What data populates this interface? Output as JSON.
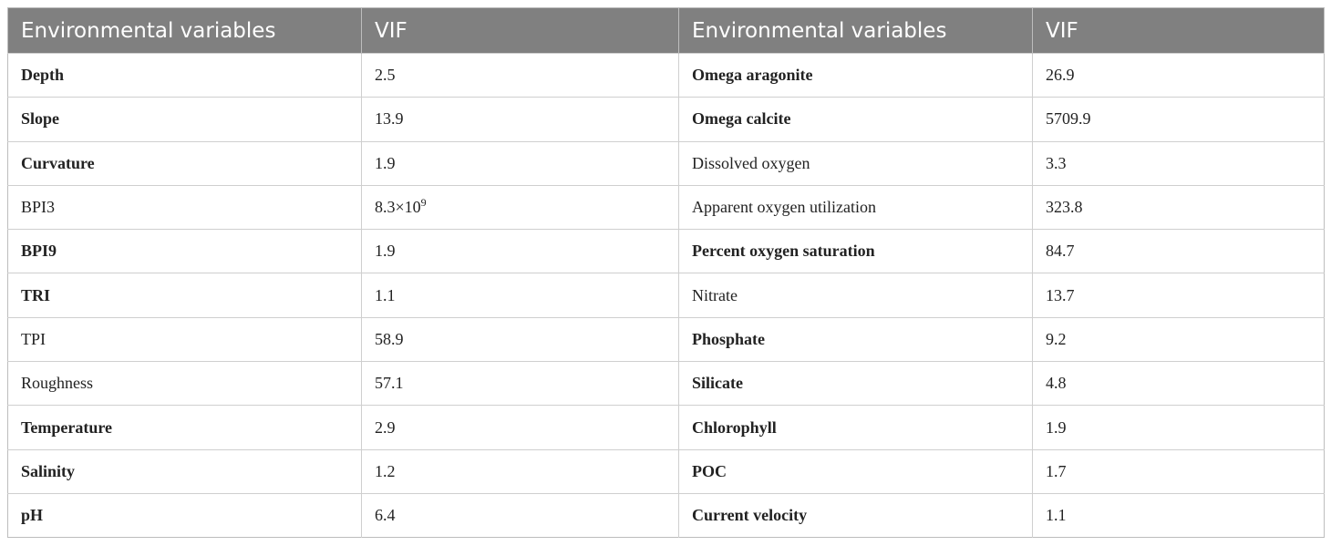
{
  "table": {
    "headers": [
      "Environmental variables",
      "VIF",
      "Environmental variables",
      "VIF"
    ],
    "rows": [
      {
        "left_var": "Depth",
        "left_bold": true,
        "left_vif": "2.5",
        "right_var": "Omega aragonite",
        "right_bold": true,
        "right_vif": "26.9"
      },
      {
        "left_var": "Slope",
        "left_bold": true,
        "left_vif": "13.9",
        "right_var": "Omega calcite",
        "right_bold": true,
        "right_vif": "5709.9"
      },
      {
        "left_var": "Curvature",
        "left_bold": true,
        "left_vif": "1.9",
        "right_var": "Dissolved oxygen",
        "right_bold": false,
        "right_vif": "3.3"
      },
      {
        "left_var": "BPI3",
        "left_bold": false,
        "left_vif": "8.3×10",
        "left_vif_sup": "9",
        "right_var": "Apparent oxygen utilization",
        "right_bold": false,
        "right_vif": "323.8"
      },
      {
        "left_var": "BPI9",
        "left_bold": true,
        "left_vif": "1.9",
        "right_var": "Percent oxygen saturation",
        "right_bold": true,
        "right_vif": "84.7"
      },
      {
        "left_var": "TRI",
        "left_bold": true,
        "left_vif": "1.1",
        "right_var": "Nitrate",
        "right_bold": false,
        "right_vif": "13.7"
      },
      {
        "left_var": "TPI",
        "left_bold": false,
        "left_vif": "58.9",
        "right_var": "Phosphate",
        "right_bold": true,
        "right_vif": "9.2"
      },
      {
        "left_var": "Roughness",
        "left_bold": false,
        "left_vif": "57.1",
        "right_var": "Silicate",
        "right_bold": true,
        "right_vif": "4.8"
      },
      {
        "left_var": "Temperature",
        "left_bold": true,
        "left_vif": "2.9",
        "right_var": "Chlorophyll",
        "right_bold": true,
        "right_vif": "1.9"
      },
      {
        "left_var": "Salinity",
        "left_bold": true,
        "left_vif": "1.2",
        "right_var": "POC",
        "right_bold": true,
        "right_vif": "1.7"
      },
      {
        "left_var": "pH",
        "left_bold": true,
        "left_vif": "6.4",
        "right_var": "Current velocity",
        "right_bold": true,
        "right_vif": "1.1"
      }
    ]
  }
}
